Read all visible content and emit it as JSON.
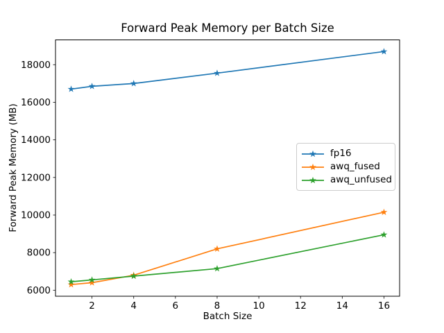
{
  "figure": {
    "background": "#ffffff",
    "axes_border_color": "#000000"
  },
  "chart_data": {
    "type": "line",
    "title": "Forward Peak Memory per Batch Size",
    "xlabel": "Batch Size",
    "ylabel": "Forward Peak Memory (MB)",
    "x": [
      1,
      2,
      4,
      8,
      16
    ],
    "series": [
      {
        "name": "fp16",
        "color": "#1f77b4",
        "values": [
          16700,
          16850,
          17000,
          17550,
          18700
        ]
      },
      {
        "name": "awq_fused",
        "color": "#ff7f0e",
        "values": [
          6300,
          6400,
          6800,
          8200,
          10150
        ]
      },
      {
        "name": "awq_unfused",
        "color": "#2ca02c",
        "values": [
          6450,
          6550,
          6750,
          7150,
          8950
        ]
      }
    ],
    "marker": "star",
    "xticks": [
      2,
      4,
      6,
      8,
      10,
      12,
      14,
      16
    ],
    "yticks": [
      6000,
      8000,
      10000,
      12000,
      14000,
      16000,
      18000
    ],
    "xlim": [
      0.25,
      16.75
    ],
    "ylim": [
      5680,
      19320
    ],
    "grid": false,
    "legend": {
      "position": "center-right",
      "border_color": "#cccccc",
      "entries": [
        "fp16",
        "awq_fused",
        "awq_unfused"
      ]
    }
  }
}
